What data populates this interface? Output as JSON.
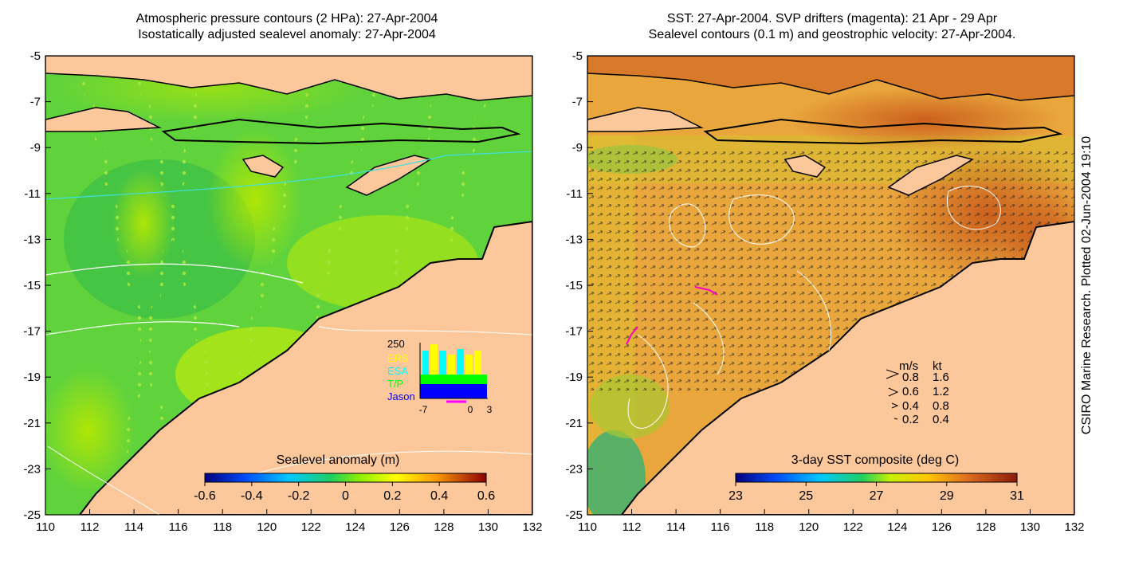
{
  "left_map": {
    "title_line1": "Atmospheric pressure contours (2 HPa): 27-Apr-2004",
    "title_line2": "Isostatically adjusted sealevel anomaly: 27-Apr-2004",
    "x_ticks": [
      "110",
      "112",
      "114",
      "116",
      "118",
      "120",
      "122",
      "124",
      "126",
      "128",
      "130",
      "132"
    ],
    "y_ticks": [
      "-5",
      "-7",
      "-9",
      "-11",
      "-13",
      "-15",
      "-17",
      "-19",
      "-21",
      "-23",
      "-25"
    ],
    "colorbar": {
      "label": "Sealevel anomaly (m)",
      "ticks": [
        "-0.6",
        "-0.4",
        "-0.2",
        "0",
        "0.2",
        "0.4",
        "0.6"
      ],
      "range": [
        -0.6,
        0.6
      ]
    },
    "inset": {
      "top_value": "250",
      "legend": [
        {
          "label": "ERS",
          "color": "#ffff00"
        },
        {
          "label": "ESA",
          "color": "#00ffff"
        },
        {
          "label": "T/P",
          "color": "#00ff00"
        },
        {
          "label": "Jason",
          "color": "#0000ff"
        }
      ],
      "x_ticks": [
        "-7",
        "0",
        "3"
      ]
    }
  },
  "right_map": {
    "title_line1": "SST: 27-Apr-2004. SVP drifters (magenta): 21 Apr - 29 Apr",
    "title_line2": "Sealevel contours (0.1 m) and geostrophic velocity: 27-Apr-2004.",
    "x_ticks": [
      "110",
      "112",
      "114",
      "116",
      "118",
      "120",
      "122",
      "124",
      "126",
      "128",
      "130",
      "132"
    ],
    "y_ticks": [
      "-5",
      "-7",
      "-9",
      "-11",
      "-13",
      "-15",
      "-17",
      "-19",
      "-21",
      "-23",
      "-25"
    ],
    "colorbar": {
      "label": "3-day SST composite (deg C)",
      "ticks": [
        "23",
        "25",
        "27",
        "29",
        "31"
      ],
      "range": [
        23,
        31
      ]
    },
    "velocity_legend": {
      "header_ms": "m/s",
      "header_kt": "kt",
      "rows": [
        {
          "ms": "0.8",
          "kt": "1.6"
        },
        {
          "ms": "0.6",
          "kt": "1.2"
        },
        {
          "ms": "0.4",
          "kt": "0.8"
        },
        {
          "ms": "0.2",
          "kt": "0.4"
        }
      ]
    }
  },
  "sidebar_text": "CSIRO Marine Research. Plotted 02-Jun-2004 19:10",
  "colors": {
    "land": "#fcc89b",
    "sea_anomaly": "#5fd23c",
    "sst_sea": "#e9a63c",
    "coast": "#000000"
  }
}
